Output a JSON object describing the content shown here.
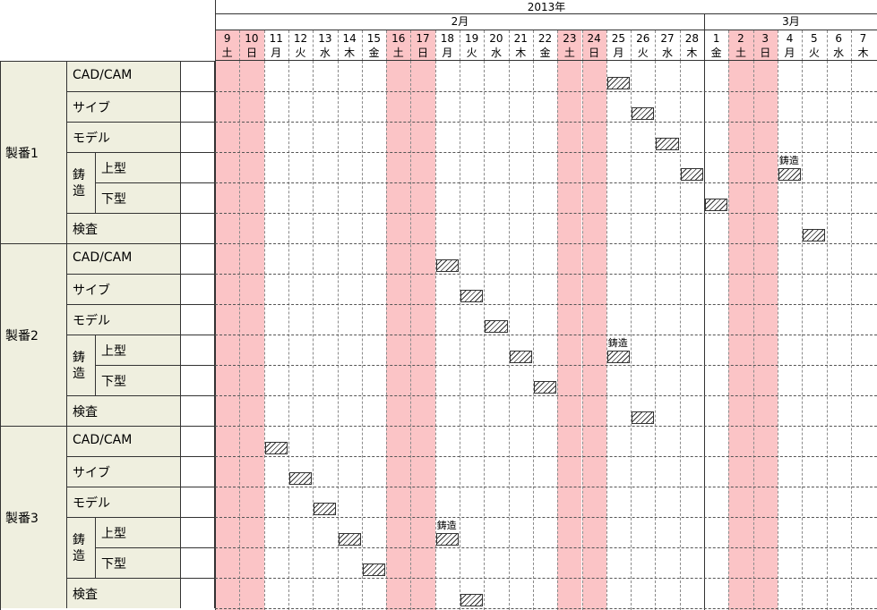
{
  "header": {
    "year": "2013年",
    "months": [
      "2月",
      "3月"
    ]
  },
  "days": [
    {
      "num": "9",
      "wd": "土",
      "weekend": true
    },
    {
      "num": "10",
      "wd": "日",
      "weekend": true
    },
    {
      "num": "11",
      "wd": "月",
      "weekend": false
    },
    {
      "num": "12",
      "wd": "火",
      "weekend": false
    },
    {
      "num": "13",
      "wd": "水",
      "weekend": false
    },
    {
      "num": "14",
      "wd": "木",
      "weekend": false
    },
    {
      "num": "15",
      "wd": "金",
      "weekend": false
    },
    {
      "num": "16",
      "wd": "土",
      "weekend": true
    },
    {
      "num": "17",
      "wd": "日",
      "weekend": true
    },
    {
      "num": "18",
      "wd": "月",
      "weekend": false
    },
    {
      "num": "19",
      "wd": "火",
      "weekend": false
    },
    {
      "num": "20",
      "wd": "水",
      "weekend": false
    },
    {
      "num": "21",
      "wd": "木",
      "weekend": false
    },
    {
      "num": "22",
      "wd": "金",
      "weekend": false
    },
    {
      "num": "23",
      "wd": "土",
      "weekend": true
    },
    {
      "num": "24",
      "wd": "日",
      "weekend": true
    },
    {
      "num": "25",
      "wd": "月",
      "weekend": false
    },
    {
      "num": "26",
      "wd": "火",
      "weekend": false
    },
    {
      "num": "27",
      "wd": "水",
      "weekend": false
    },
    {
      "num": "28",
      "wd": "木",
      "weekend": false
    },
    {
      "num": "1",
      "wd": "金",
      "weekend": false
    },
    {
      "num": "2",
      "wd": "土",
      "weekend": true
    },
    {
      "num": "3",
      "wd": "日",
      "weekend": true
    },
    {
      "num": "4",
      "wd": "月",
      "weekend": false
    },
    {
      "num": "5",
      "wd": "火",
      "weekend": false
    },
    {
      "num": "6",
      "wd": "水",
      "weekend": false
    },
    {
      "num": "7",
      "wd": "木",
      "weekend": false
    }
  ],
  "process_labels": {
    "cadcam": "CAD/CAM",
    "saibu": "サイブ",
    "model": "モデル",
    "chuzo_1": "鋳",
    "chuzo_2": "造",
    "uekata": "上型",
    "shitakata": "下型",
    "kensa": "検査"
  },
  "jobs": [
    {
      "name": "製番1",
      "tasks": [
        {
          "process": "CAD/CAM",
          "day": "25"
        },
        {
          "process": "サイブ",
          "day": "26"
        },
        {
          "process": "モデル",
          "day": "27"
        },
        {
          "process": "上型",
          "day": "28"
        },
        {
          "process": "上型",
          "day": "4",
          "note": "鋳造"
        },
        {
          "process": "下型",
          "day": "1"
        },
        {
          "process": "検査",
          "day": "5"
        }
      ]
    },
    {
      "name": "製番2",
      "tasks": [
        {
          "process": "CAD/CAM",
          "day": "18"
        },
        {
          "process": "サイブ",
          "day": "19"
        },
        {
          "process": "モデル",
          "day": "20"
        },
        {
          "process": "上型",
          "day": "21"
        },
        {
          "process": "上型",
          "day": "25",
          "note": "鋳造"
        },
        {
          "process": "下型",
          "day": "22"
        },
        {
          "process": "検査",
          "day": "26"
        }
      ]
    },
    {
      "name": "製番3",
      "tasks": [
        {
          "process": "CAD/CAM",
          "day": "11"
        },
        {
          "process": "サイブ",
          "day": "12"
        },
        {
          "process": "モデル",
          "day": "13"
        },
        {
          "process": "上型",
          "day": "14"
        },
        {
          "process": "上型",
          "day": "18",
          "note": "鋳造"
        },
        {
          "process": "下型",
          "day": "15"
        },
        {
          "process": "検査",
          "day": "19"
        }
      ]
    }
  ],
  "colors": {
    "weekend": "#fbc4c6",
    "label_bg": "#efefdf",
    "line": "#333333"
  }
}
